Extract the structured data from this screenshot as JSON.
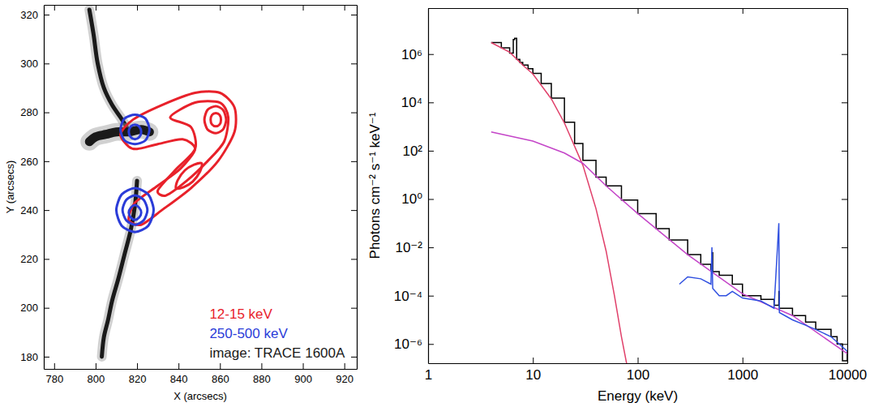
{
  "chart_data": [
    {
      "type": "contour",
      "x_label": "X (arcsecs)",
      "y_label": "Y (arcsecs)",
      "xlim": [
        775,
        926
      ],
      "ylim": [
        175,
        324
      ],
      "xticks": [
        780,
        800,
        820,
        840,
        860,
        880,
        900,
        920
      ],
      "yticks": [
        180,
        200,
        220,
        240,
        260,
        280,
        300,
        320
      ],
      "legend": "lower right",
      "series": [
        {
          "name": "12-15 keV",
          "color": "#e8212a",
          "type": "contour",
          "contours": [
            {
              "x": [
                816,
                812,
                818,
                832,
                848,
                860,
                867,
                867,
                859,
                846,
                832,
                822,
                816,
                819,
                830,
                841,
                848,
                842,
                830,
                820
              ],
              "y": [
                266,
                271,
                277,
                283,
                288,
                288,
                282,
                272,
                260,
                249,
                240,
                234,
                236,
                243,
                250,
                257,
                265,
                269,
                267,
                265
              ]
            },
            {
              "x": [
                836,
                848,
                860,
                864,
                862,
                854,
                844,
                834,
                830,
                838,
                848,
                846
              ],
              "y": [
                278,
                284,
                284,
                278,
                268,
                260,
                252,
                246,
                248,
                256,
                265,
                274
              ]
            },
            {
              "x": [
                863,
                861.5,
                858,
                854,
                852.5,
                854,
                858,
                861.5
              ],
              "y": [
                277,
                281,
                282.5,
                281,
                277,
                273,
                271.5,
                273
              ]
            },
            {
              "x": [
                860.5,
                859.8,
                858,
                856.2,
                855.5,
                856.2,
                858,
                859.8
              ],
              "y": [
                277,
                279,
                279.7,
                279,
                277,
                275,
                274.3,
                275
              ]
            },
            {
              "x": [
                851.2,
                847.5,
                843.1,
                839.6,
                838.8,
                842.5,
                846.9,
                850.4
              ],
              "y": [
                259.1,
                258.6,
                256.3,
                252.2,
                248.9,
                249.4,
                251.7,
                255.8
              ]
            }
          ]
        },
        {
          "name": "250-500 keV",
          "color": "#2b3cd8",
          "type": "contour",
          "contours": [
            {
              "x": [
                826,
                824,
                819,
                814,
                812,
                814,
                819,
                824
              ],
              "y": [
                273,
                277.5,
                279,
                277.5,
                273,
                268.5,
                267,
                268.5
              ]
            },
            {
              "x": [
                822,
                821,
                819,
                817,
                816,
                817,
                819,
                821
              ],
              "y": [
                272,
                274.2,
                275,
                274.2,
                272,
                269.8,
                269,
                269.8
              ]
            },
            {
              "x": [
                828,
                825.4,
                819,
                812.6,
                810,
                812.6,
                819,
                825.4
              ],
              "y": [
                240,
                246.4,
                249,
                246.4,
                240,
                233.6,
                231,
                233.6
              ]
            },
            {
              "x": [
                825,
                823.2,
                819,
                814.8,
                813,
                814.8,
                819,
                823.2
              ],
              "y": [
                240,
                244.2,
                246,
                244.2,
                240,
                235.8,
                234,
                235.8
              ]
            },
            {
              "x": [
                822,
                821,
                819,
                817,
                816,
                817,
                819,
                821
              ],
              "y": [
                239,
                241,
                242,
                241,
                239,
                237,
                236,
                237
              ]
            }
          ]
        },
        {
          "name": "image: TRACE 1600A",
          "color": "#1a1a1a",
          "type": "image",
          "ribbons": [
            {
              "x": [
                797,
                799,
                801,
                804,
                808,
                812,
                815
              ],
              "y": [
                322,
                312,
                300,
                290,
                283,
                278,
                274
              ]
            },
            {
              "x": [
                797,
                800,
                805,
                810,
                816,
                822,
                826
              ],
              "y": [
                268,
                270,
                271,
                272,
                272,
                273,
                272
              ]
            },
            {
              "x": [
                820,
                819,
                817,
                814,
                811,
                808,
                806,
                804,
                803
              ],
              "y": [
                252,
                242,
                232,
                222,
                212,
                203,
                195,
                188,
                180
              ]
            }
          ]
        }
      ]
    },
    {
      "type": "line",
      "log": true,
      "x_label": "Energy (keV)",
      "y_label": "Photons cm⁻² s⁻¹ keV⁻¹",
      "xlim": [
        1,
        10000
      ],
      "ylim": [
        1.6e-07,
        80000000.0
      ],
      "xticks": [
        1,
        10,
        100,
        1000,
        10000
      ],
      "yticks": [
        {
          "value": 1e-06,
          "label": "10⁻⁶"
        },
        {
          "value": 0.0001,
          "label": "10⁻⁴"
        },
        {
          "value": 0.01,
          "label": "10⁻²"
        },
        {
          "value": 1,
          "label": "10⁰"
        },
        {
          "value": 100,
          "label": "10²"
        },
        {
          "value": 10000,
          "label": "10⁴"
        },
        {
          "value": 1000000,
          "label": "10⁶"
        }
      ],
      "series": [
        {
          "color": "#000000",
          "line_style": "steps",
          "x": [
            4,
            5,
            6,
            6.5,
            6.7,
            7,
            7.5,
            8,
            9,
            10,
            12,
            15,
            20,
            25,
            30,
            40,
            50,
            70,
            100,
            150,
            200,
            300,
            400,
            500,
            511,
            520,
            600,
            800,
            1000,
            1500,
            2000,
            2223,
            2250,
            3000,
            4000,
            5000,
            7000,
            8000,
            9000,
            10000
          ],
          "values": [
            3000000.0,
            1800000.0,
            1100000.0,
            4000000.0,
            4500000.0,
            600000.0,
            450000.0,
            350000.0,
            250000.0,
            160000.0,
            60000.0,
            15000.0,
            1500,
            200,
            40,
            8,
            3.5,
            0.9,
            0.25,
            0.06,
            0.02,
            0.005,
            0.002,
            0.0012,
            0.006,
            0.001,
            0.0007,
            0.0003,
            0.0001,
            7e-05,
            4e-05,
            0.00015,
            3e-05,
            1.5e-05,
            8e-06,
            4e-06,
            2e-06,
            1e-06,
            2e-07,
            5e-07
          ]
        },
        {
          "color": "#e0406a",
          "line_style": "solid",
          "x": [
            4,
            6,
            8,
            10,
            15,
            20,
            30,
            40,
            50,
            60,
            70,
            80
          ],
          "values": [
            3000000.0,
            1200000.0,
            350000.0,
            150000.0,
            14000.0,
            1400,
            25,
            0.4,
            0.007,
            0.0001,
            2e-06,
            1e-07
          ]
        },
        {
          "color": "#c445c8",
          "line_style": "solid",
          "x": [
            4,
            10,
            20,
            30,
            50,
            100,
            300,
            1000,
            3000,
            10000
          ],
          "values": [
            600,
            250,
            80,
            30,
            3.5,
            0.25,
            0.005,
            0.00012,
            1.5e-05,
            4e-07
          ]
        },
        {
          "color": "#3050e0",
          "line_style": "solid",
          "x": [
            250,
            300,
            400,
            500,
            511,
            520,
            600,
            700,
            800,
            1000,
            1500,
            2000,
            2223,
            2250,
            3000,
            4000,
            5000,
            7000,
            10000
          ],
          "values": [
            0.0003,
            0.0006,
            0.0005,
            0.0003,
            0.01,
            0.0002,
            0.0001,
            0.0001,
            0.00015,
            8e-05,
            6e-05,
            3e-05,
            0.1,
            2e-05,
            1e-05,
            6e-06,
            4e-06,
            2e-06,
            5e-07
          ]
        }
      ]
    }
  ]
}
